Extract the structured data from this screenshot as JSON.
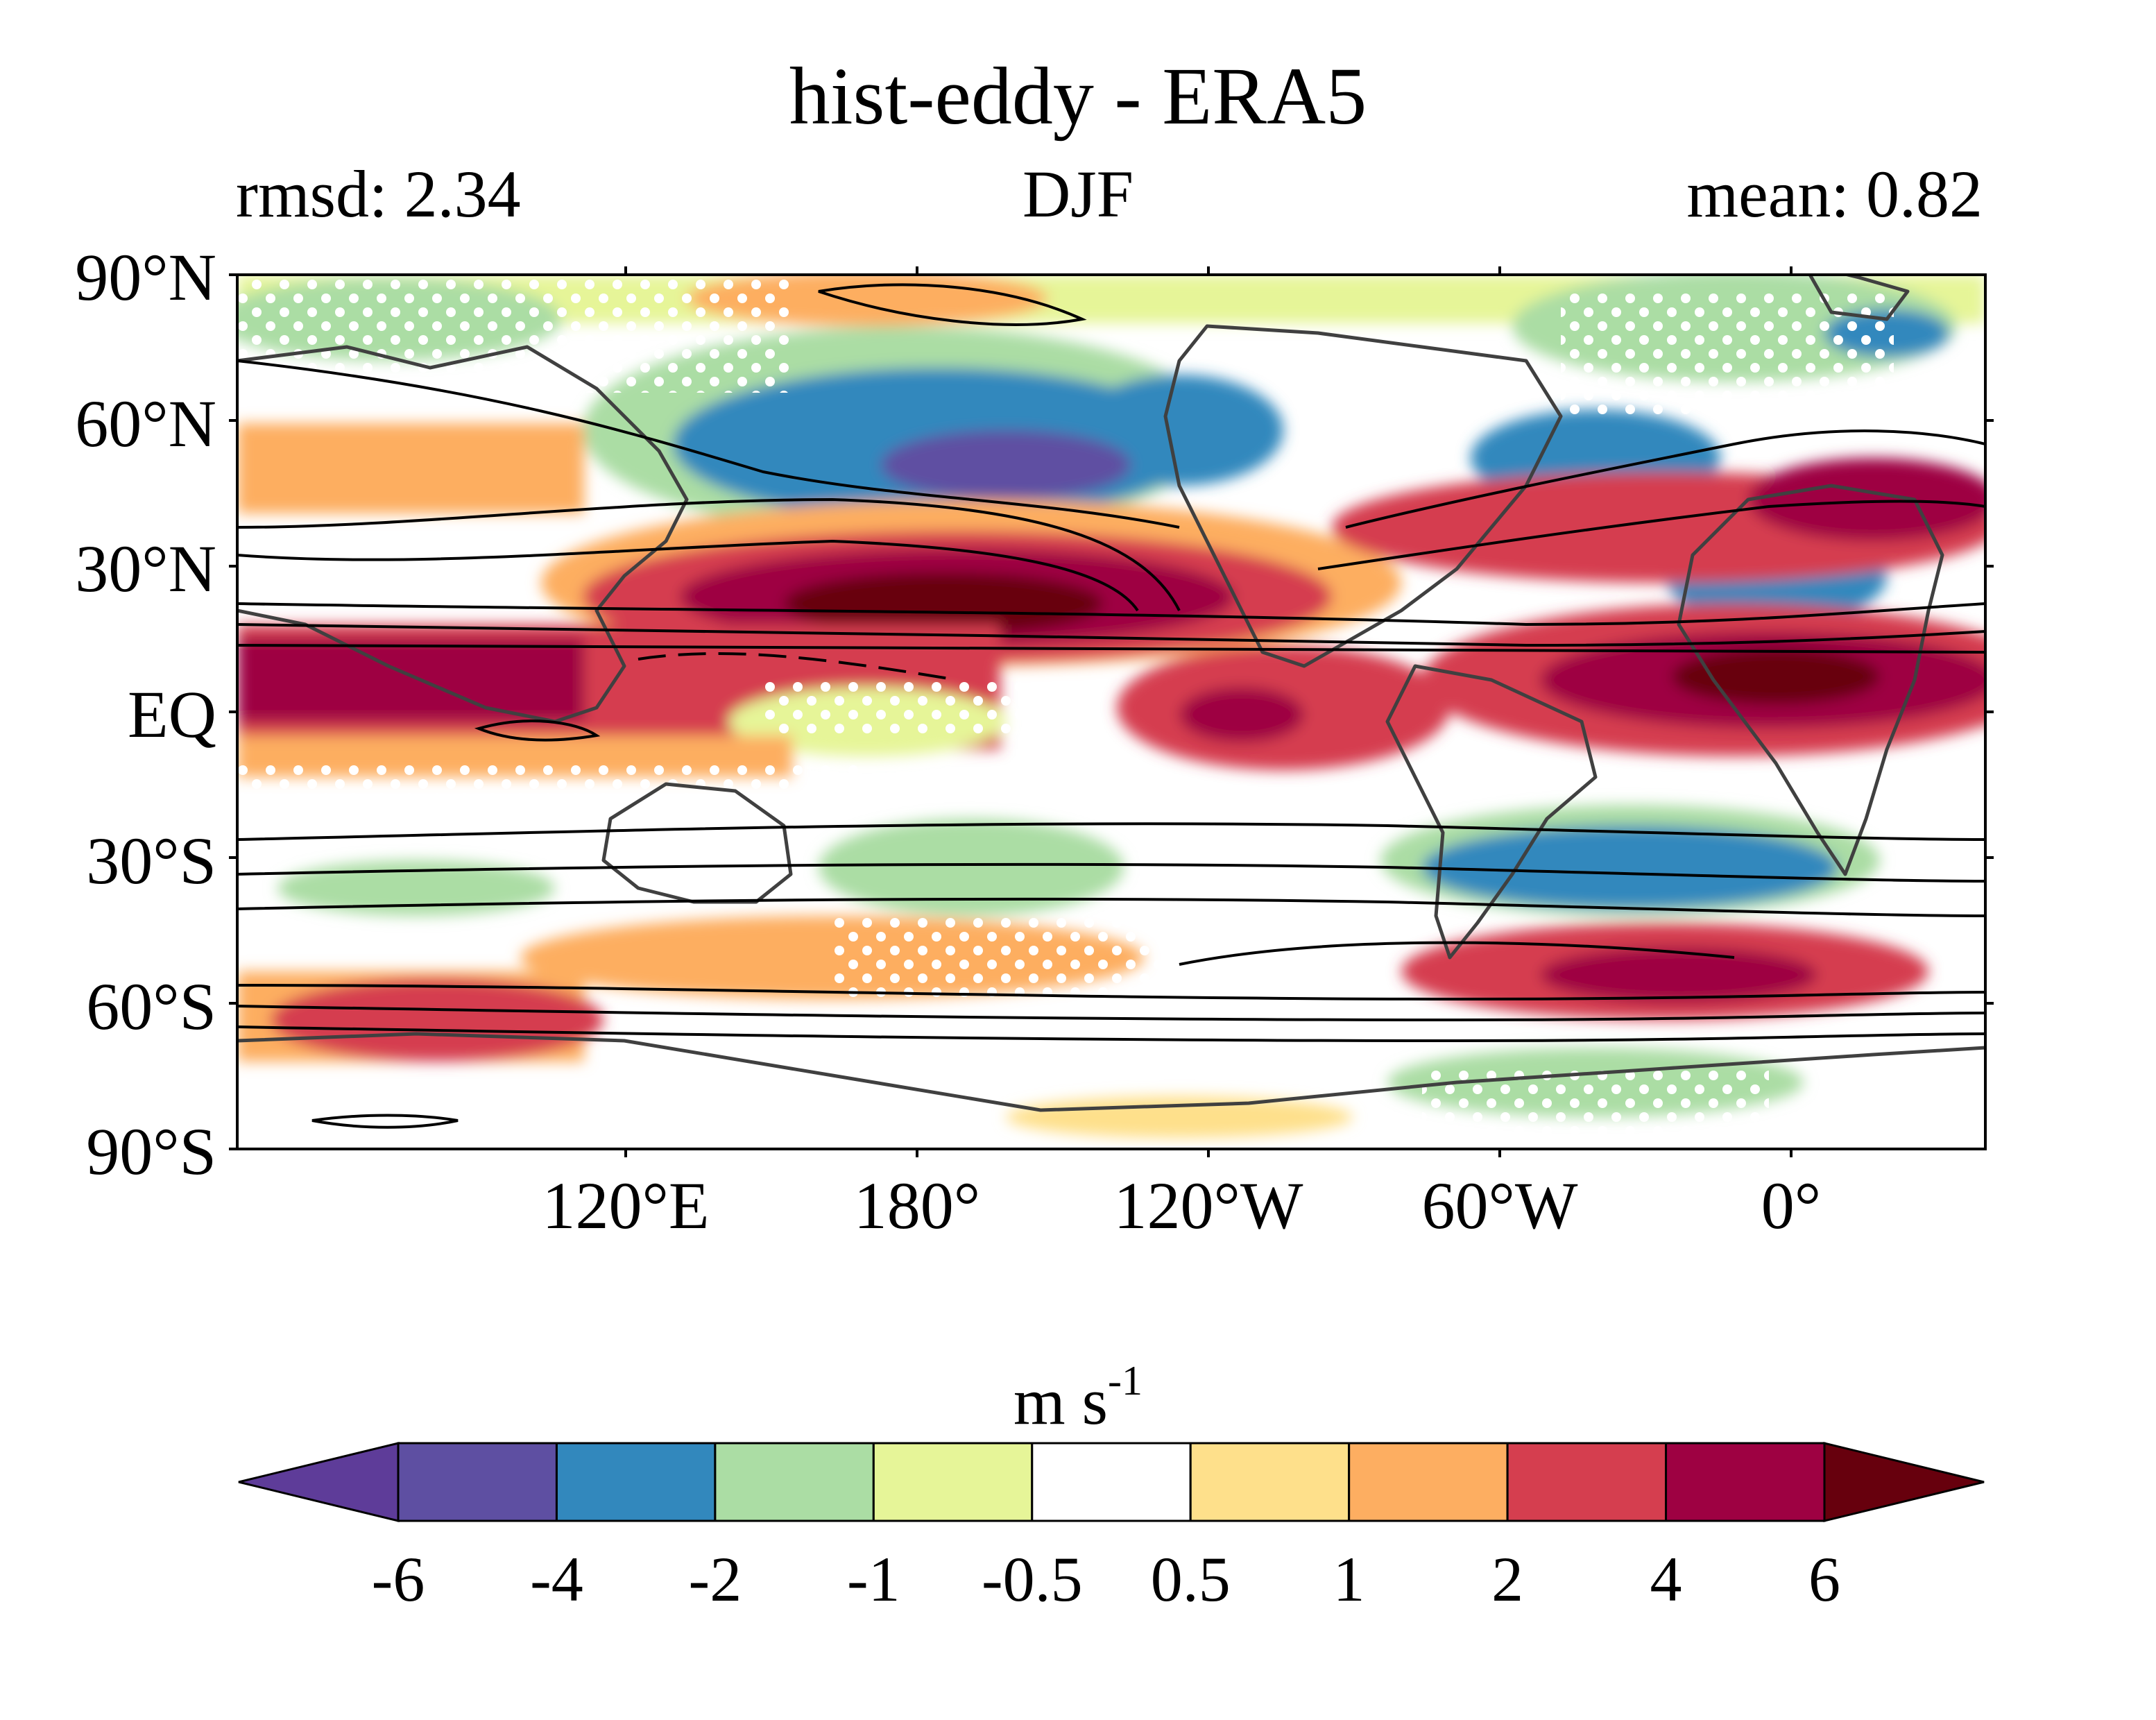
{
  "title": "hist-eddy - ERA5",
  "subtitle_left": "rmsd: 2.34",
  "subtitle_center": "DJF",
  "subtitle_right": "mean: 0.82",
  "lat_labels": [
    "90°N",
    "60°N",
    "30°N",
    "EQ",
    "30°S",
    "60°S",
    "90°S"
  ],
  "lon_labels": [
    "120°E",
    "180°",
    "120°W",
    "60°W",
    "0°"
  ],
  "colorbar": {
    "unit_base": "m s",
    "unit_exp": "-1",
    "tick_labels": [
      "-6",
      "-4",
      "-2",
      "-1",
      "-0.5",
      "0.5",
      "1",
      "2",
      "4",
      "6"
    ],
    "colors": [
      "#5e3c99",
      "#5e4fa2",
      "#3288bd",
      "#abdda4",
      "#e6f598",
      "#ffffff",
      "#fee08b",
      "#fdae61",
      "#d53e4f",
      "#9e0142",
      "#67000d"
    ]
  },
  "chart_data": {
    "type": "heatmap",
    "title": "hist-eddy - ERA5",
    "season": "DJF",
    "rmsd": 2.34,
    "mean": 0.82,
    "unit": "m s-1",
    "lat_range": [
      -90,
      90
    ],
    "lon_range": [
      40,
      400
    ],
    "levels": [
      -6,
      -4,
      -2,
      -1,
      -0.5,
      0.5,
      1,
      2,
      4,
      6
    ]
  }
}
